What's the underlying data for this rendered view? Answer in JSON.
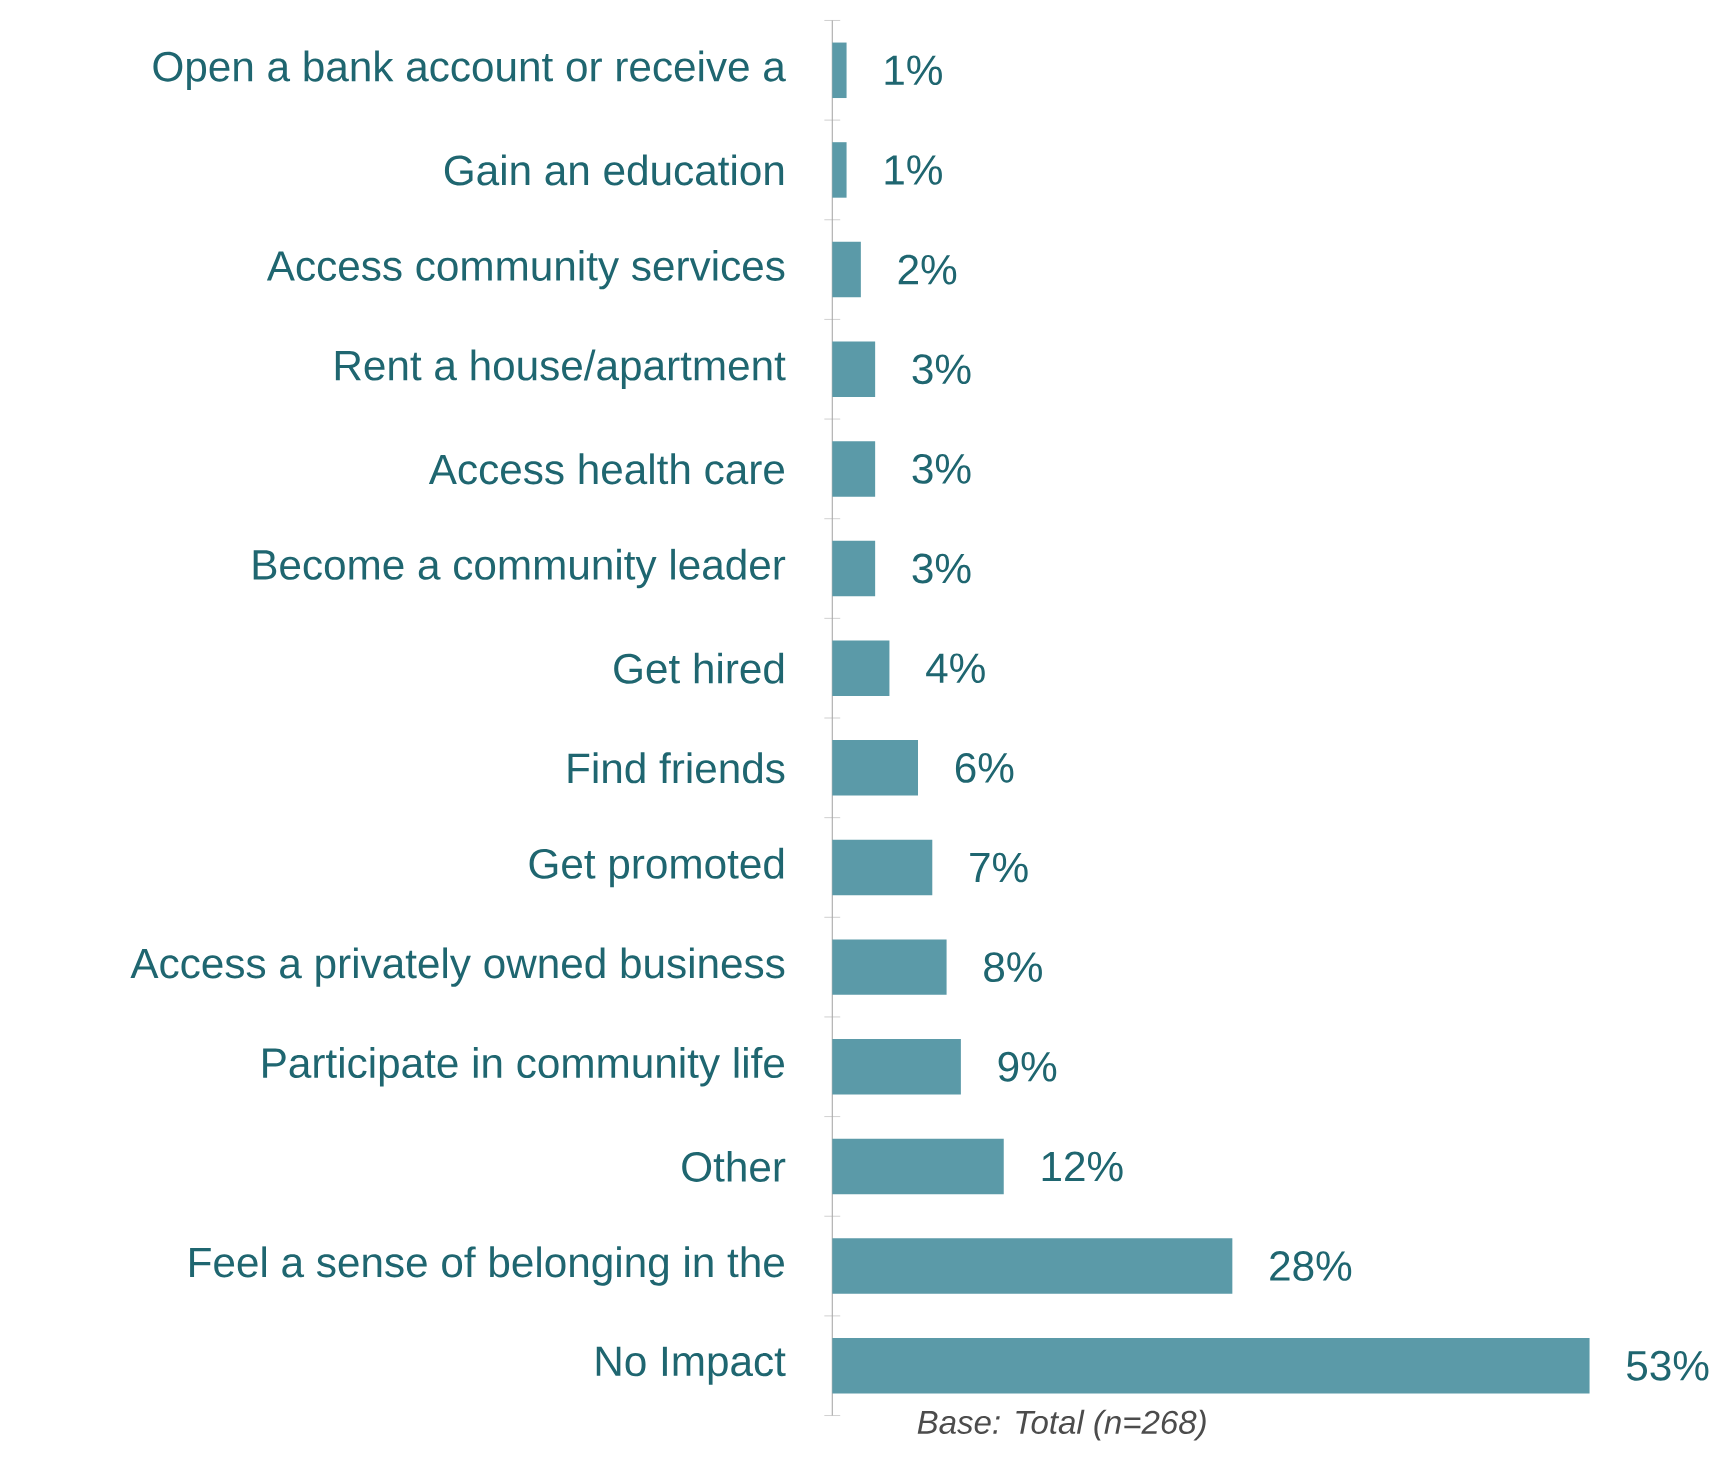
{
  "chart_data": {
    "type": "bar",
    "orientation": "horizontal",
    "categories": [
      "Open a bank account or receive a",
      "Gain an education",
      "Access community services",
      "Rent a house/apartment",
      "Access health care",
      "Become a community leader",
      "Get hired",
      "Find friends",
      "Get promoted",
      "Access a privately owned business",
      "Participate in community life",
      "Other",
      "Feel a sense of belonging in the",
      "No Impact"
    ],
    "values": [
      1,
      1,
      2,
      3,
      3,
      3,
      4,
      6,
      7,
      8,
      9,
      12,
      28,
      53
    ],
    "value_labels": [
      "1%",
      "1%",
      "2%",
      "3%",
      "3%",
      "3%",
      "4%",
      "6%",
      "7%",
      "8%",
      "9%",
      "12%",
      "28%",
      "53%"
    ],
    "color": "#5b9aa8",
    "annotations": [
      "Base: Total (n=268)"
    ]
  }
}
